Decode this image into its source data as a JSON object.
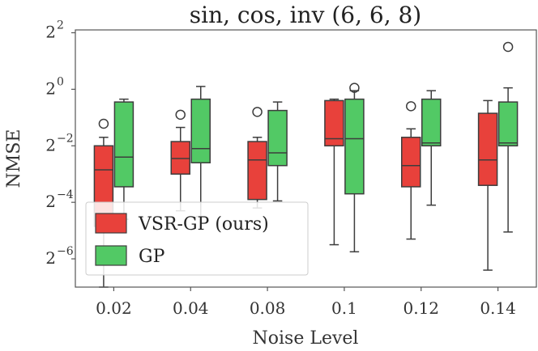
{
  "chart_data": {
    "type": "box",
    "title": "sin, cos, inv (6, 6, 8)",
    "xlabel": "Noise Level",
    "ylabel": "NMSE",
    "y_scale": "log2",
    "ylim_exp": [
      -7,
      2.1
    ],
    "y_ticks": [
      {
        "base": "2",
        "exp": "2",
        "value": 2
      },
      {
        "base": "2",
        "exp": "0",
        "value": 0
      },
      {
        "base": "2",
        "exp": "−2",
        "value": -2
      },
      {
        "base": "2",
        "exp": "−4",
        "value": -4
      },
      {
        "base": "2",
        "exp": "−6",
        "value": -6
      }
    ],
    "categories": [
      "0.02",
      "0.04",
      "0.08",
      "0.1",
      "0.12",
      "0.14"
    ],
    "legend_position": "lower-left",
    "series": [
      {
        "name": "VSR-GP (ours)",
        "color": "#e8413b",
        "boxes": [
          {
            "whislo": -7.0,
            "q1": -4.85,
            "med": -2.85,
            "q3": -2.0,
            "whishi": -1.7,
            "fliers": [
              -1.22
            ]
          },
          {
            "whislo": -4.3,
            "q1": -3.0,
            "med": -2.45,
            "q3": -1.85,
            "whishi": -1.35,
            "fliers": [
              -0.9
            ]
          },
          {
            "whislo": -4.2,
            "q1": -3.9,
            "med": -2.5,
            "q3": -1.85,
            "whishi": -1.7,
            "fliers": [
              -0.8
            ]
          },
          {
            "whislo": -5.5,
            "q1": -2.0,
            "med": -1.75,
            "q3": -0.4,
            "whishi": -0.35,
            "fliers": []
          },
          {
            "whislo": -5.3,
            "q1": -3.45,
            "med": -2.7,
            "q3": -1.7,
            "whishi": -1.4,
            "fliers": [
              -0.6
            ]
          },
          {
            "whislo": -6.4,
            "q1": -3.4,
            "med": -2.5,
            "q3": -0.85,
            "whishi": -0.4,
            "fliers": []
          }
        ]
      },
      {
        "name": "GP",
        "color": "#52c965",
        "boxes": [
          {
            "whislo": -4.6,
            "q1": -3.45,
            "med": -2.4,
            "q3": -0.45,
            "whishi": -0.35,
            "fliers": []
          },
          {
            "whislo": -4.5,
            "q1": -2.6,
            "med": -2.1,
            "q3": -0.35,
            "whishi": 0.1,
            "fliers": []
          },
          {
            "whislo": -3.95,
            "q1": -2.7,
            "med": -2.25,
            "q3": -0.75,
            "whishi": -0.45,
            "fliers": []
          },
          {
            "whislo": -5.75,
            "q1": -3.7,
            "med": -1.75,
            "q3": -0.35,
            "whishi": -0.05,
            "fliers": [
              0.05
            ]
          },
          {
            "whislo": -4.1,
            "q1": -2.0,
            "med": -1.9,
            "q3": -0.35,
            "whishi": -0.05,
            "fliers": []
          },
          {
            "whislo": -5.05,
            "q1": -2.0,
            "med": -1.9,
            "q3": -0.45,
            "whishi": 0.05,
            "fliers": [
              1.5
            ]
          }
        ]
      }
    ]
  }
}
